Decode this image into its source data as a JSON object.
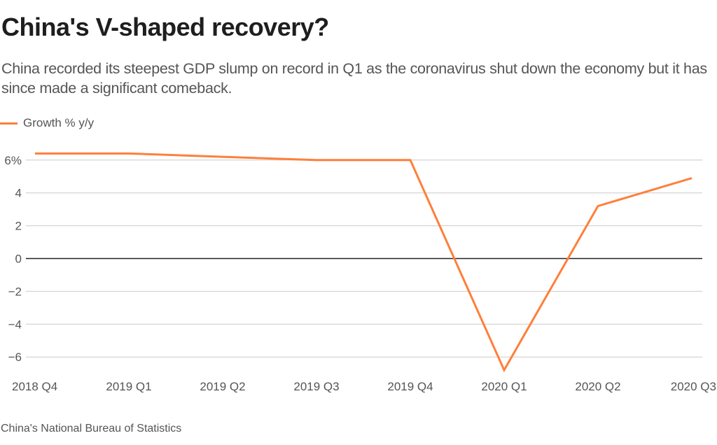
{
  "header": {
    "title": "China's V-shaped recovery?",
    "subtitle": "China recorded its steepest GDP slump on record in Q1 as the coronavirus shut down the economy but it has since made a significant comeback."
  },
  "footer": {
    "source": "China's National Bureau of Statistics"
  },
  "colors": {
    "series": "#ff7f3a",
    "grid": "#cccccc",
    "zero": "#222222"
  },
  "chart_data": {
    "type": "line",
    "title": "China's V-shaped recovery?",
    "xlabel": "",
    "ylabel": "",
    "categories": [
      "2018 Q4",
      "2019 Q1",
      "2019 Q2",
      "2019 Q3",
      "2019 Q4",
      "2020 Q1",
      "2020 Q2",
      "2020 Q3"
    ],
    "series": [
      {
        "name": "Growth % y/y",
        "values": [
          6.4,
          6.4,
          6.2,
          6.0,
          6.0,
          -6.8,
          3.2,
          4.9
        ]
      }
    ],
    "yticks": [
      6,
      4,
      2,
      0,
      -2,
      -4,
      -6
    ],
    "ytick_labels": [
      "6%",
      "4",
      "2",
      "0",
      "−2",
      "−4",
      "−6"
    ],
    "ylim": [
      -7,
      6.5
    ],
    "grid": true,
    "legend": "top-left"
  }
}
